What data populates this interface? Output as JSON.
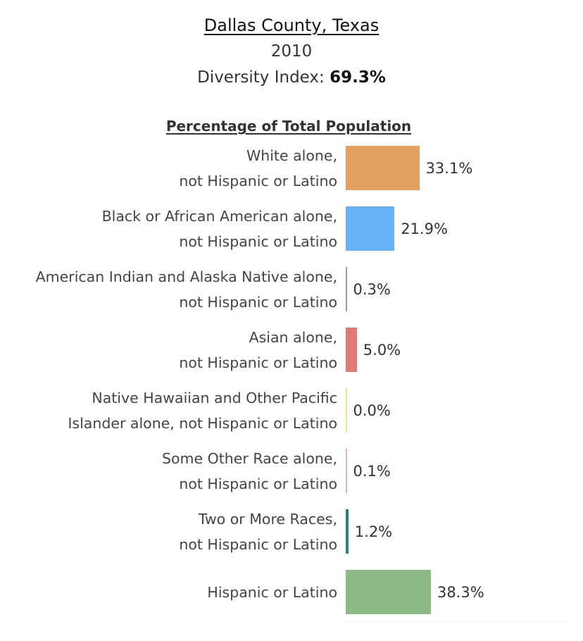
{
  "header": {
    "county": "Dallas County, Texas",
    "year": "2010",
    "diversity_label": "Diversity Index: ",
    "diversity_value": "69.3%"
  },
  "chart_data": {
    "type": "bar",
    "orientation": "horizontal",
    "title": "Percentage of Total Population",
    "categories": [
      [
        "White alone,",
        "not Hispanic or Latino"
      ],
      [
        "Black or African American alone,",
        "not Hispanic or Latino"
      ],
      [
        "American Indian and Alaska Native alone,",
        "not Hispanic or Latino"
      ],
      [
        "Asian alone,",
        "not Hispanic or Latino"
      ],
      [
        "Native Hawaiian and Other Pacific",
        "Islander alone, not Hispanic or Latino"
      ],
      [
        "Some Other Race alone,",
        "not Hispanic or Latino"
      ],
      [
        "Two or More Races,",
        "not Hispanic or Latino"
      ],
      [
        "Hispanic or Latino"
      ]
    ],
    "values": [
      33.1,
      21.9,
      0.3,
      5.0,
      0.0,
      0.1,
      1.2,
      38.3
    ],
    "value_labels": [
      "33.1%",
      "21.9%",
      "0.3%",
      "5.0%",
      "0.0%",
      "0.1%",
      "1.2%",
      "38.3%"
    ],
    "colors": [
      "#e2a061",
      "#68b1f7",
      "#9a93c9",
      "#e07a74",
      "#f2e37a",
      "#e8a6e0",
      "#2f8078",
      "#8dbb84"
    ],
    "xlim": [
      0,
      38.3
    ],
    "grid": false,
    "legend": "none"
  }
}
